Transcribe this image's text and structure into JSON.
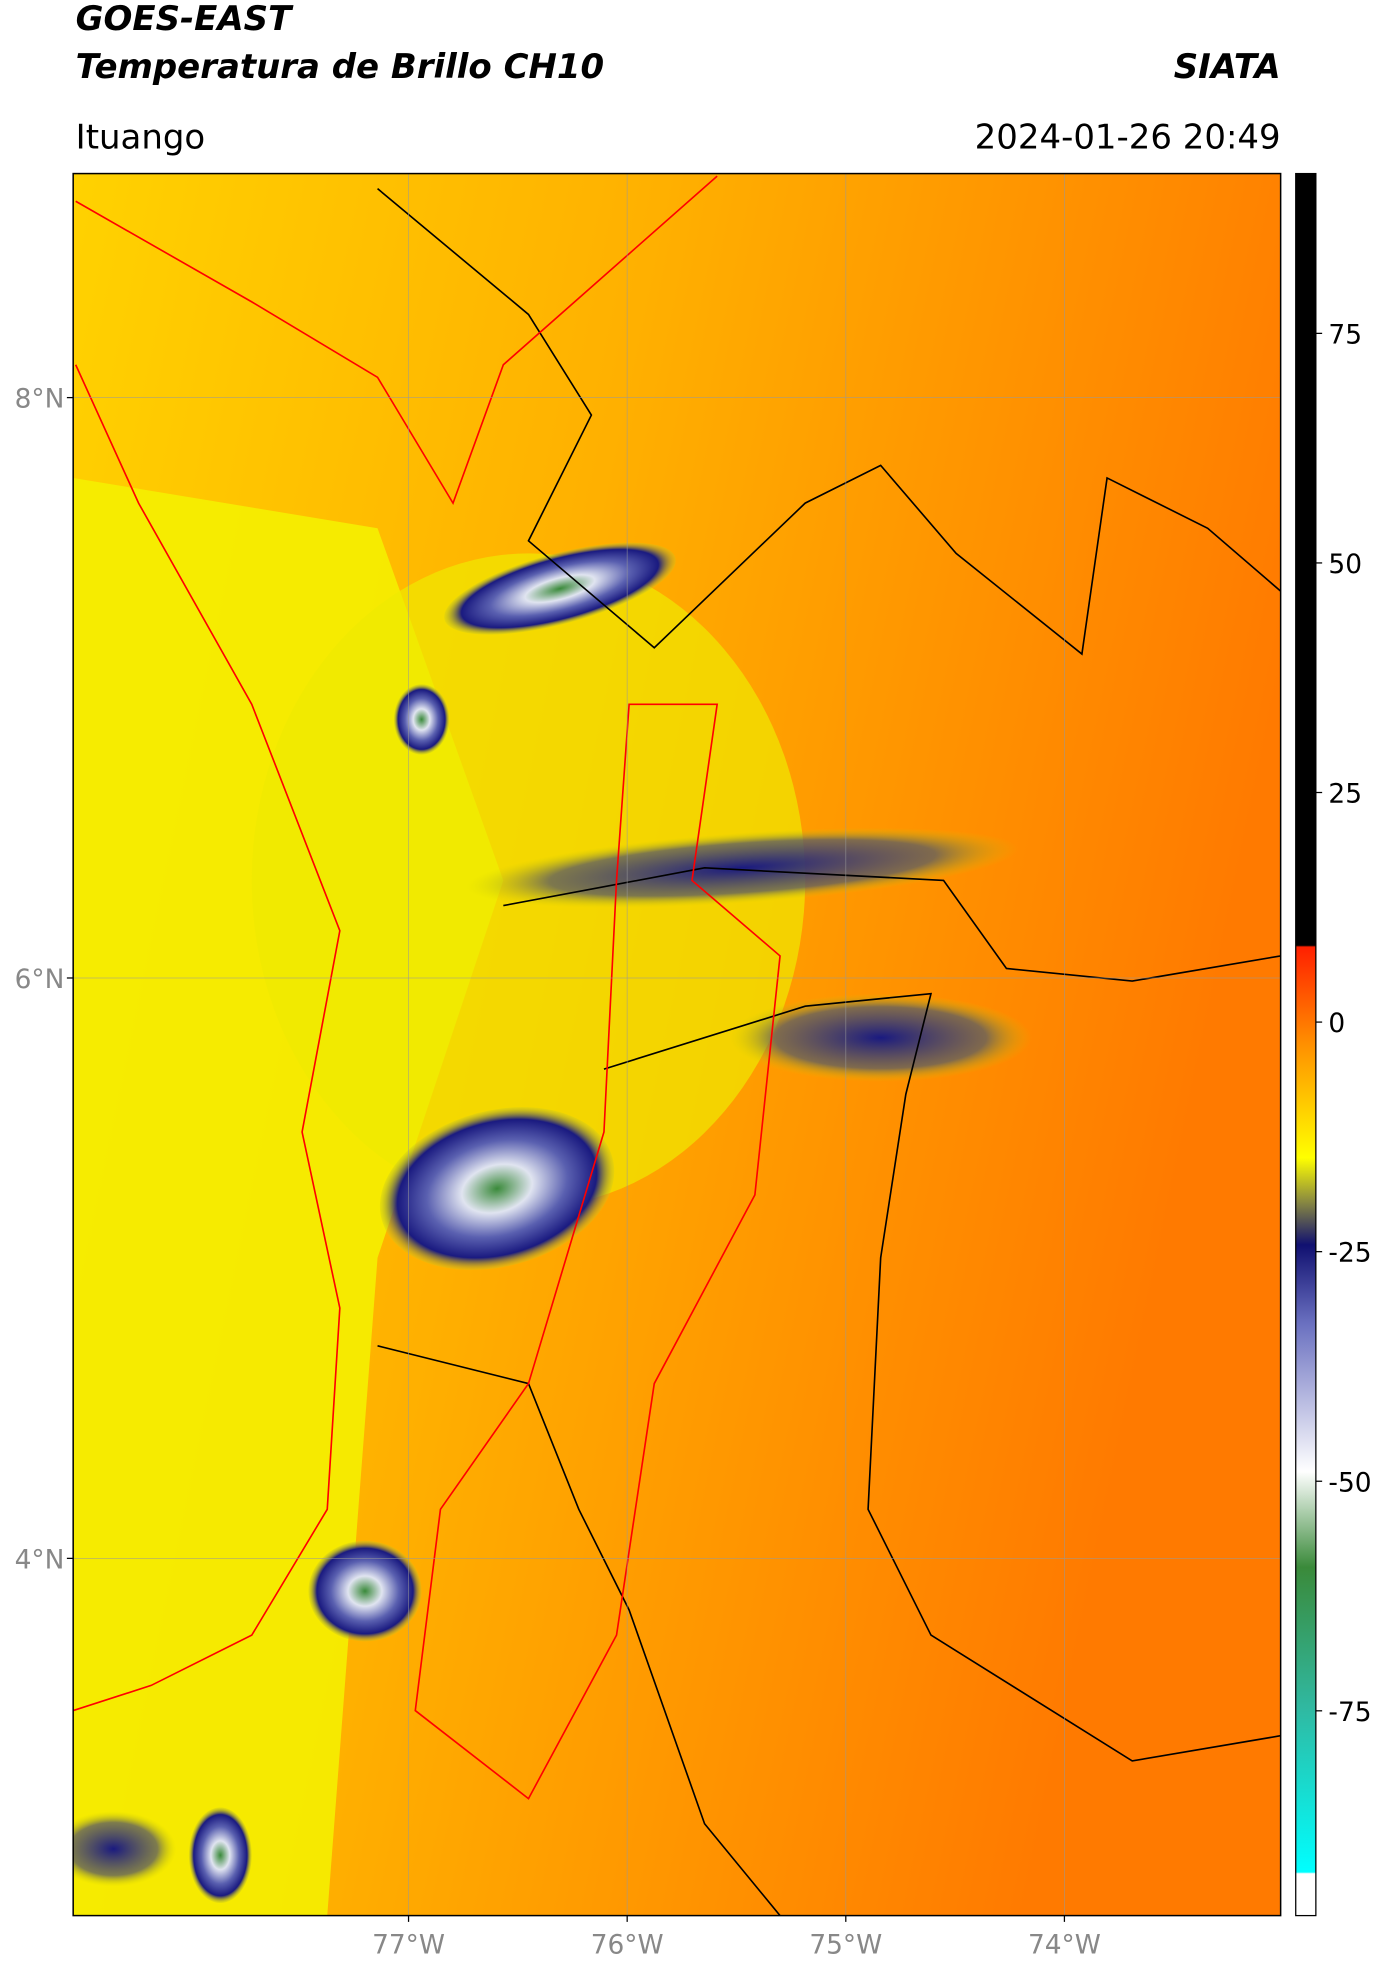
{
  "header": {
    "title": "GOES-EAST",
    "subtitle": "Temperatura de Brillo CH10",
    "source": "SIATA",
    "location": "Ituango",
    "datetime": "2024-01-26 20:49"
  },
  "map": {
    "lonlim": [
      -78.534,
      -73.011
    ],
    "latlim": [
      2.769,
      8.772
    ],
    "lat_ticks": [
      {
        "value": 8,
        "label": "8°N"
      },
      {
        "value": 6,
        "label": "6°N"
      },
      {
        "value": 4,
        "label": "4°N"
      }
    ],
    "lon_ticks": [
      {
        "value": -77,
        "label": "77°W"
      },
      {
        "value": -76,
        "label": "76°W"
      },
      {
        "value": -75,
        "label": "75°W"
      },
      {
        "value": -74,
        "label": "74°W"
      }
    ],
    "grid": true
  },
  "colorbar": {
    "lim": [
      -97.3,
      92.4
    ],
    "ticks": [
      75,
      50,
      25,
      0,
      -25,
      -50,
      -75
    ]
  }
}
